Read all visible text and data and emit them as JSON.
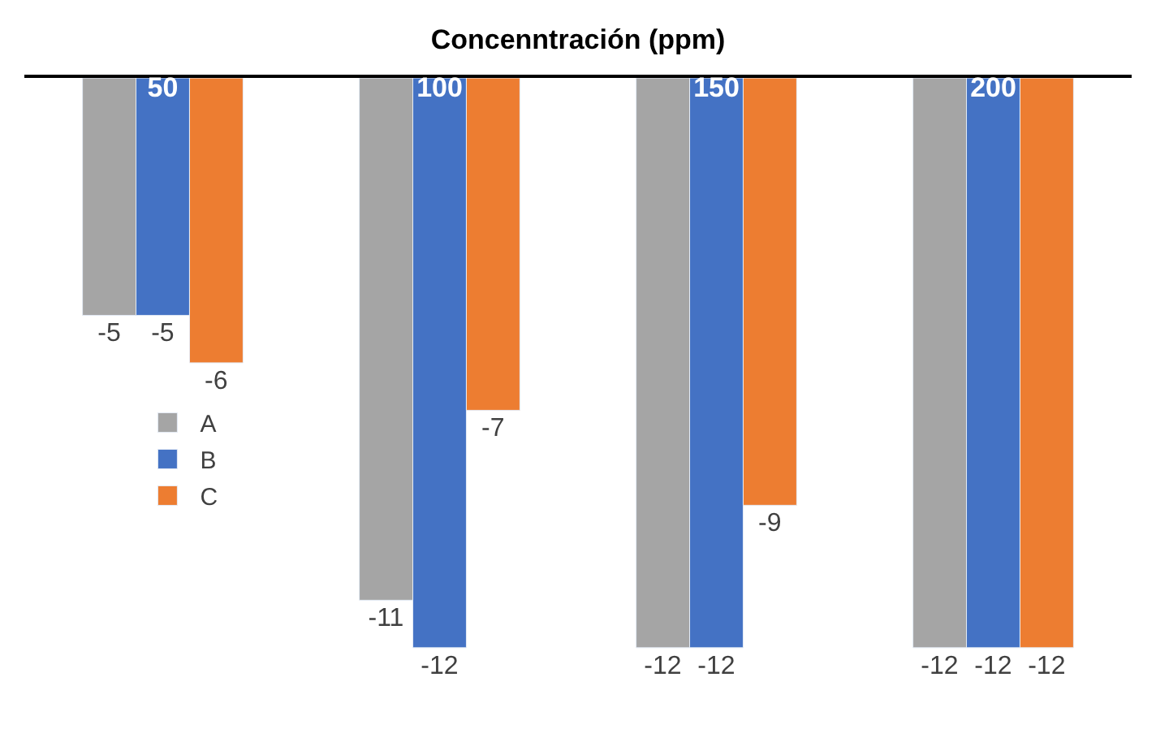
{
  "chart_data": {
    "type": "bar",
    "title": "Concenntración (ppm)",
    "categories": [
      "50",
      "100",
      "150",
      "200"
    ],
    "series": [
      {
        "name": "A",
        "color": "#a5a5a5",
        "values": [
          -5,
          -11,
          -12,
          -12
        ]
      },
      {
        "name": "B",
        "color": "#4472c4",
        "values": [
          -5,
          -12,
          -12,
          -12
        ]
      },
      {
        "name": "C",
        "color": "#ed7d31",
        "values": [
          -6,
          -7,
          -9,
          -12
        ]
      }
    ],
    "data_labels": true,
    "legend": "left"
  }
}
